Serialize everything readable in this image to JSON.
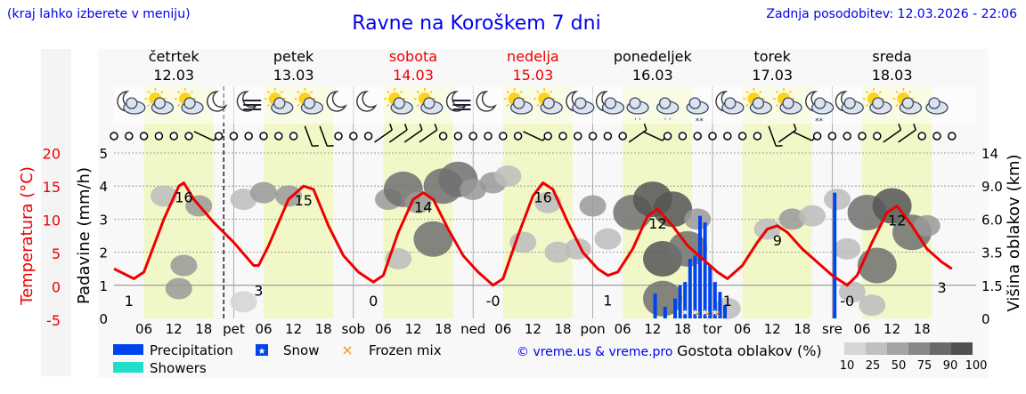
{
  "header": {
    "hint": "(kraj lahko izberete v meniju)",
    "title": "Ravne na Koroškem 7 dni",
    "updated": "Zadnja posodobitev: 12.03.2026 - 22:06",
    "credit": "© vreme.us & vreme.pro"
  },
  "colors": {
    "temperature": "#ee0000",
    "precipitation": "#0044ee",
    "showers": "#22ddcc",
    "frozen_mix": "#ee9900",
    "weekend": "#ee0000",
    "daylight_band": "#f2f7c8",
    "link": "#0000ee"
  },
  "days": [
    {
      "name": "četrtek",
      "date": "12.03",
      "abbr": "",
      "weekend": false
    },
    {
      "name": "petek",
      "date": "13.03",
      "abbr": "pet",
      "weekend": false
    },
    {
      "name": "sobota",
      "date": "14.03",
      "abbr": "sob",
      "weekend": true
    },
    {
      "name": "nedelja",
      "date": "15.03",
      "abbr": "ned",
      "weekend": true
    },
    {
      "name": "ponedeljek",
      "date": "16.03",
      "abbr": "pon",
      "weekend": false
    },
    {
      "name": "torek",
      "date": "17.03",
      "abbr": "tor",
      "weekend": false
    },
    {
      "name": "sreda",
      "date": "18.03",
      "abbr": "sre",
      "weekend": false
    }
  ],
  "weather_icons": [
    "moon-cloud-icon",
    "sun-cloud-icon",
    "sun-cloud-icon",
    "moon-icon",
    "moon-fog-icon",
    "sun-cloud-icon",
    "sun-cloud-icon",
    "moon-icon",
    "moon-icon",
    "sun-cloud-icon",
    "sun-cloud-icon",
    "moon-fog-icon",
    "moon-icon",
    "sun-cloud-icon",
    "sun-cloud-icon",
    "moon-cloud-icon",
    "moon-cloud-icon",
    "cloud-rain-icon",
    "cloud-rain-icon",
    "cloud-snow-icon",
    "moon-cloud-icon",
    "sun-cloud-icon",
    "sun-cloud-icon",
    "moon-snow-icon",
    "moon-cloud-icon",
    "sun-cloud-icon",
    "sun-cloud-icon",
    "cloud-icon"
  ],
  "chart_data": {
    "type": "line",
    "hour_ticks": [
      "06",
      "12",
      "18"
    ],
    "temperature": {
      "label": "Temperatura (°C)",
      "ticks": [
        "-5",
        "0",
        "5",
        "10",
        "15",
        "20"
      ],
      "range": [
        -5,
        20
      ],
      "labels": [
        {
          "hour": 3,
          "text": "1"
        },
        {
          "hour": 14,
          "text": "16"
        },
        {
          "hour": 29,
          "text": "3"
        },
        {
          "hour": 38,
          "text": "15"
        },
        {
          "hour": 52,
          "text": "0"
        },
        {
          "hour": 62,
          "text": "14"
        },
        {
          "hour": 76,
          "text": "-0"
        },
        {
          "hour": 86,
          "text": "16"
        },
        {
          "hour": 99,
          "text": "1"
        },
        {
          "hour": 109,
          "text": "12"
        },
        {
          "hour": 123,
          "text": "1"
        },
        {
          "hour": 133,
          "text": "9"
        },
        {
          "hour": 147,
          "text": "-0"
        },
        {
          "hour": 157,
          "text": "12"
        },
        {
          "hour": 166,
          "text": "3"
        }
      ],
      "series": [
        {
          "hour": 0,
          "value": 2.5
        },
        {
          "hour": 4,
          "value": 1.0
        },
        {
          "hour": 6,
          "value": 2.0
        },
        {
          "hour": 10,
          "value": 10.0
        },
        {
          "hour": 13,
          "value": 15.0
        },
        {
          "hour": 14,
          "value": 15.5
        },
        {
          "hour": 16,
          "value": 13.0
        },
        {
          "hour": 20,
          "value": 9.5
        },
        {
          "hour": 24,
          "value": 6.5
        },
        {
          "hour": 28,
          "value": 3.0
        },
        {
          "hour": 29,
          "value": 3.0
        },
        {
          "hour": 31,
          "value": 6.0
        },
        {
          "hour": 35,
          "value": 13.0
        },
        {
          "hour": 38,
          "value": 15.0
        },
        {
          "hour": 40,
          "value": 14.5
        },
        {
          "hour": 43,
          "value": 9.0
        },
        {
          "hour": 46,
          "value": 4.5
        },
        {
          "hour": 49,
          "value": 2.0
        },
        {
          "hour": 52,
          "value": 0.5
        },
        {
          "hour": 54,
          "value": 1.5
        },
        {
          "hour": 57,
          "value": 8.0
        },
        {
          "hour": 60,
          "value": 13.0
        },
        {
          "hour": 62,
          "value": 14.0
        },
        {
          "hour": 64,
          "value": 13.0
        },
        {
          "hour": 67,
          "value": 8.5
        },
        {
          "hour": 70,
          "value": 4.5
        },
        {
          "hour": 73,
          "value": 2.0
        },
        {
          "hour": 76,
          "value": 0.0
        },
        {
          "hour": 78,
          "value": 1.0
        },
        {
          "hour": 81,
          "value": 7.5
        },
        {
          "hour": 84,
          "value": 13.5
        },
        {
          "hour": 86,
          "value": 15.5
        },
        {
          "hour": 88,
          "value": 14.5
        },
        {
          "hour": 91,
          "value": 9.5
        },
        {
          "hour": 94,
          "value": 5.0
        },
        {
          "hour": 97,
          "value": 2.5
        },
        {
          "hour": 99,
          "value": 1.5
        },
        {
          "hour": 101,
          "value": 2.0
        },
        {
          "hour": 104,
          "value": 5.5
        },
        {
          "hour": 107,
          "value": 10.5
        },
        {
          "hour": 109,
          "value": 11.5
        },
        {
          "hour": 112,
          "value": 9.0
        },
        {
          "hour": 115,
          "value": 6.0
        },
        {
          "hour": 118,
          "value": 4.0
        },
        {
          "hour": 121,
          "value": 2.0
        },
        {
          "hour": 123,
          "value": 1.0
        },
        {
          "hour": 126,
          "value": 3.0
        },
        {
          "hour": 129,
          "value": 6.5
        },
        {
          "hour": 131,
          "value": 8.5
        },
        {
          "hour": 133,
          "value": 9.0
        },
        {
          "hour": 135,
          "value": 8.0
        },
        {
          "hour": 138,
          "value": 5.5
        },
        {
          "hour": 141,
          "value": 3.5
        },
        {
          "hour": 144,
          "value": 1.5
        },
        {
          "hour": 147,
          "value": 0.0
        },
        {
          "hour": 149,
          "value": 1.5
        },
        {
          "hour": 152,
          "value": 6.5
        },
        {
          "hour": 155,
          "value": 11.0
        },
        {
          "hour": 157,
          "value": 12.0
        },
        {
          "hour": 160,
          "value": 9.0
        },
        {
          "hour": 163,
          "value": 5.5
        },
        {
          "hour": 166,
          "value": 3.5
        },
        {
          "hour": 168,
          "value": 2.5
        }
      ]
    },
    "precipitation": {
      "label": "Padavine (mm/h)",
      "ticks": [
        "0",
        "1",
        "2",
        "3",
        "4",
        "5"
      ],
      "range": [
        0,
        5
      ],
      "rain": [
        {
          "hour": 108.5,
          "value": 0.75
        },
        {
          "hour": 110.5,
          "value": 0.35
        },
        {
          "hour": 112.5,
          "value": 0.6
        },
        {
          "hour": 113.5,
          "value": 1.0
        },
        {
          "hour": 114.5,
          "value": 1.1
        },
        {
          "hour": 115.5,
          "value": 1.8
        },
        {
          "hour": 116.5,
          "value": 1.9
        },
        {
          "hour": 117.5,
          "value": 3.1
        },
        {
          "hour": 118.5,
          "value": 2.9
        },
        {
          "hour": 119.5,
          "value": 1.6
        },
        {
          "hour": 120.5,
          "value": 1.1
        },
        {
          "hour": 121.5,
          "value": 0.8
        },
        {
          "hour": 122.5,
          "value": 0.4
        },
        {
          "hour": 144.5,
          "value": 3.8
        }
      ],
      "snow": [
        {
          "hour": 114.5
        },
        {
          "hour": 116.5
        },
        {
          "hour": 118.5
        },
        {
          "hour": 120.5
        }
      ],
      "frozen": [
        {
          "hour": 117.0
        },
        {
          "hour": 119.0
        },
        {
          "hour": 121.0
        }
      ]
    },
    "cloud_height": {
      "label": "Višina oblakov (km)",
      "ticks": [
        "0",
        "1.5",
        "3.5",
        "6.0",
        "9.0",
        "14"
      ]
    },
    "clouds": [
      {
        "hour": 13,
        "value": 0.9,
        "level": 50
      },
      {
        "hour": 14,
        "value": 1.6,
        "level": 50
      },
      {
        "hour": 10,
        "value": 3.7,
        "level": 25
      },
      {
        "hour": 17,
        "value": 3.4,
        "level": 50
      },
      {
        "hour": 26,
        "value": 3.6,
        "level": 25
      },
      {
        "hour": 30,
        "value": 3.8,
        "level": 50
      },
      {
        "hour": 35,
        "value": 3.7,
        "level": 50
      },
      {
        "hour": 26,
        "value": 0.5,
        "level": 10
      },
      {
        "hour": 55,
        "value": 3.6,
        "level": 50
      },
      {
        "hour": 58,
        "value": 3.9,
        "level": 75
      },
      {
        "hour": 61,
        "value": 3.5,
        "level": 50
      },
      {
        "hour": 57,
        "value": 1.8,
        "level": 25
      },
      {
        "hour": 64,
        "value": 2.4,
        "level": 75
      },
      {
        "hour": 66,
        "value": 4.0,
        "level": 75
      },
      {
        "hour": 69,
        "value": 4.2,
        "level": 75
      },
      {
        "hour": 72,
        "value": 3.9,
        "level": 50
      },
      {
        "hour": 76,
        "value": 4.1,
        "level": 50
      },
      {
        "hour": 79,
        "value": 4.3,
        "level": 25
      },
      {
        "hour": 87,
        "value": 3.5,
        "level": 25
      },
      {
        "hour": 82,
        "value": 2.3,
        "level": 25
      },
      {
        "hour": 89,
        "value": 2.0,
        "level": 25
      },
      {
        "hour": 93,
        "value": 2.1,
        "level": 25
      },
      {
        "hour": 96,
        "value": 3.4,
        "level": 50
      },
      {
        "hour": 99,
        "value": 2.4,
        "level": 25
      },
      {
        "hour": 104,
        "value": 3.2,
        "level": 75
      },
      {
        "hour": 108,
        "value": 3.6,
        "level": 90
      },
      {
        "hour": 112,
        "value": 3.3,
        "level": 90
      },
      {
        "hour": 110,
        "value": 1.8,
        "level": 90
      },
      {
        "hour": 115,
        "value": 2.1,
        "level": 75
      },
      {
        "hour": 117,
        "value": 3.0,
        "level": 50
      },
      {
        "hour": 110,
        "value": 0.6,
        "level": 75
      },
      {
        "hour": 123,
        "value": 0.3,
        "level": 25
      },
      {
        "hour": 131,
        "value": 2.7,
        "level": 25
      },
      {
        "hour": 136,
        "value": 3.0,
        "level": 50
      },
      {
        "hour": 140,
        "value": 3.1,
        "level": 25
      },
      {
        "hour": 145,
        "value": 3.6,
        "level": 25
      },
      {
        "hour": 147,
        "value": 2.1,
        "level": 25
      },
      {
        "hour": 148,
        "value": 0.8,
        "level": 25
      },
      {
        "hour": 151,
        "value": 3.2,
        "level": 75
      },
      {
        "hour": 156,
        "value": 3.4,
        "level": 90
      },
      {
        "hour": 153,
        "value": 1.6,
        "level": 75
      },
      {
        "hour": 160,
        "value": 2.6,
        "level": 75
      },
      {
        "hour": 163,
        "value": 2.8,
        "level": 50
      },
      {
        "hour": 152,
        "value": 0.4,
        "level": 25
      }
    ],
    "wind": [
      {
        "hour": 0,
        "dir": "calm"
      },
      {
        "hour": 3,
        "dir": "calm"
      },
      {
        "hour": 6,
        "dir": "calm"
      },
      {
        "hour": 9,
        "dir": "calm"
      },
      {
        "hour": 12,
        "dir": "calm"
      },
      {
        "hour": 15,
        "dir": "calm"
      },
      {
        "hour": 18,
        "dir": "barb-sw"
      },
      {
        "hour": 21,
        "dir": "calm"
      },
      {
        "hour": 24,
        "dir": "calm"
      },
      {
        "hour": 27,
        "dir": "calm"
      },
      {
        "hour": 30,
        "dir": "calm"
      },
      {
        "hour": 33,
        "dir": "calm"
      },
      {
        "hour": 36,
        "dir": "calm"
      },
      {
        "hour": 39,
        "dir": "barb-n"
      },
      {
        "hour": 42,
        "dir": "barb-n"
      },
      {
        "hour": 45,
        "dir": "calm"
      },
      {
        "hour": 48,
        "dir": "calm"
      },
      {
        "hour": 51,
        "dir": "calm"
      },
      {
        "hour": 54,
        "dir": "barb-ne"
      },
      {
        "hour": 57,
        "dir": "barb-ne"
      },
      {
        "hour": 60,
        "dir": "barb-ne"
      },
      {
        "hour": 63,
        "dir": "barb-ne"
      },
      {
        "hour": 66,
        "dir": "calm"
      },
      {
        "hour": 69,
        "dir": "calm"
      },
      {
        "hour": 72,
        "dir": "calm"
      },
      {
        "hour": 75,
        "dir": "calm"
      },
      {
        "hour": 78,
        "dir": "calm"
      },
      {
        "hour": 81,
        "dir": "calm"
      },
      {
        "hour": 84,
        "dir": "barb-sw"
      },
      {
        "hour": 87,
        "dir": "calm"
      },
      {
        "hour": 90,
        "dir": "calm"
      },
      {
        "hour": 93,
        "dir": "calm"
      },
      {
        "hour": 96,
        "dir": "calm"
      },
      {
        "hour": 99,
        "dir": "calm"
      },
      {
        "hour": 102,
        "dir": "calm"
      },
      {
        "hour": 105,
        "dir": "barb-ne"
      },
      {
        "hour": 108,
        "dir": "barb-sw"
      },
      {
        "hour": 111,
        "dir": "calm"
      },
      {
        "hour": 114,
        "dir": "calm"
      },
      {
        "hour": 117,
        "dir": "calm"
      },
      {
        "hour": 120,
        "dir": "calm"
      },
      {
        "hour": 123,
        "dir": "calm"
      },
      {
        "hour": 126,
        "dir": "calm"
      },
      {
        "hour": 129,
        "dir": "calm"
      },
      {
        "hour": 132,
        "dir": "barb-n"
      },
      {
        "hour": 135,
        "dir": "barb-ne"
      },
      {
        "hour": 138,
        "dir": "barb-sw"
      },
      {
        "hour": 141,
        "dir": "calm"
      },
      {
        "hour": 144,
        "dir": "calm"
      },
      {
        "hour": 147,
        "dir": "calm"
      },
      {
        "hour": 150,
        "dir": "calm"
      },
      {
        "hour": 153,
        "dir": "calm"
      },
      {
        "hour": 156,
        "dir": "barb-ne"
      },
      {
        "hour": 159,
        "dir": "barb-ne"
      },
      {
        "hour": 162,
        "dir": "calm"
      },
      {
        "hour": 165,
        "dir": "calm"
      },
      {
        "hour": 168,
        "dir": "calm"
      }
    ],
    "now_hour": 22
  },
  "legend": {
    "precipitation": "Precipitation",
    "snow": "Snow",
    "frozen_mix": "Frozen mix",
    "showers": "Showers",
    "cloud_density": "Gostota oblakov (%)",
    "density_levels": [
      "10",
      "25",
      "50",
      "75",
      "90",
      "100"
    ]
  }
}
